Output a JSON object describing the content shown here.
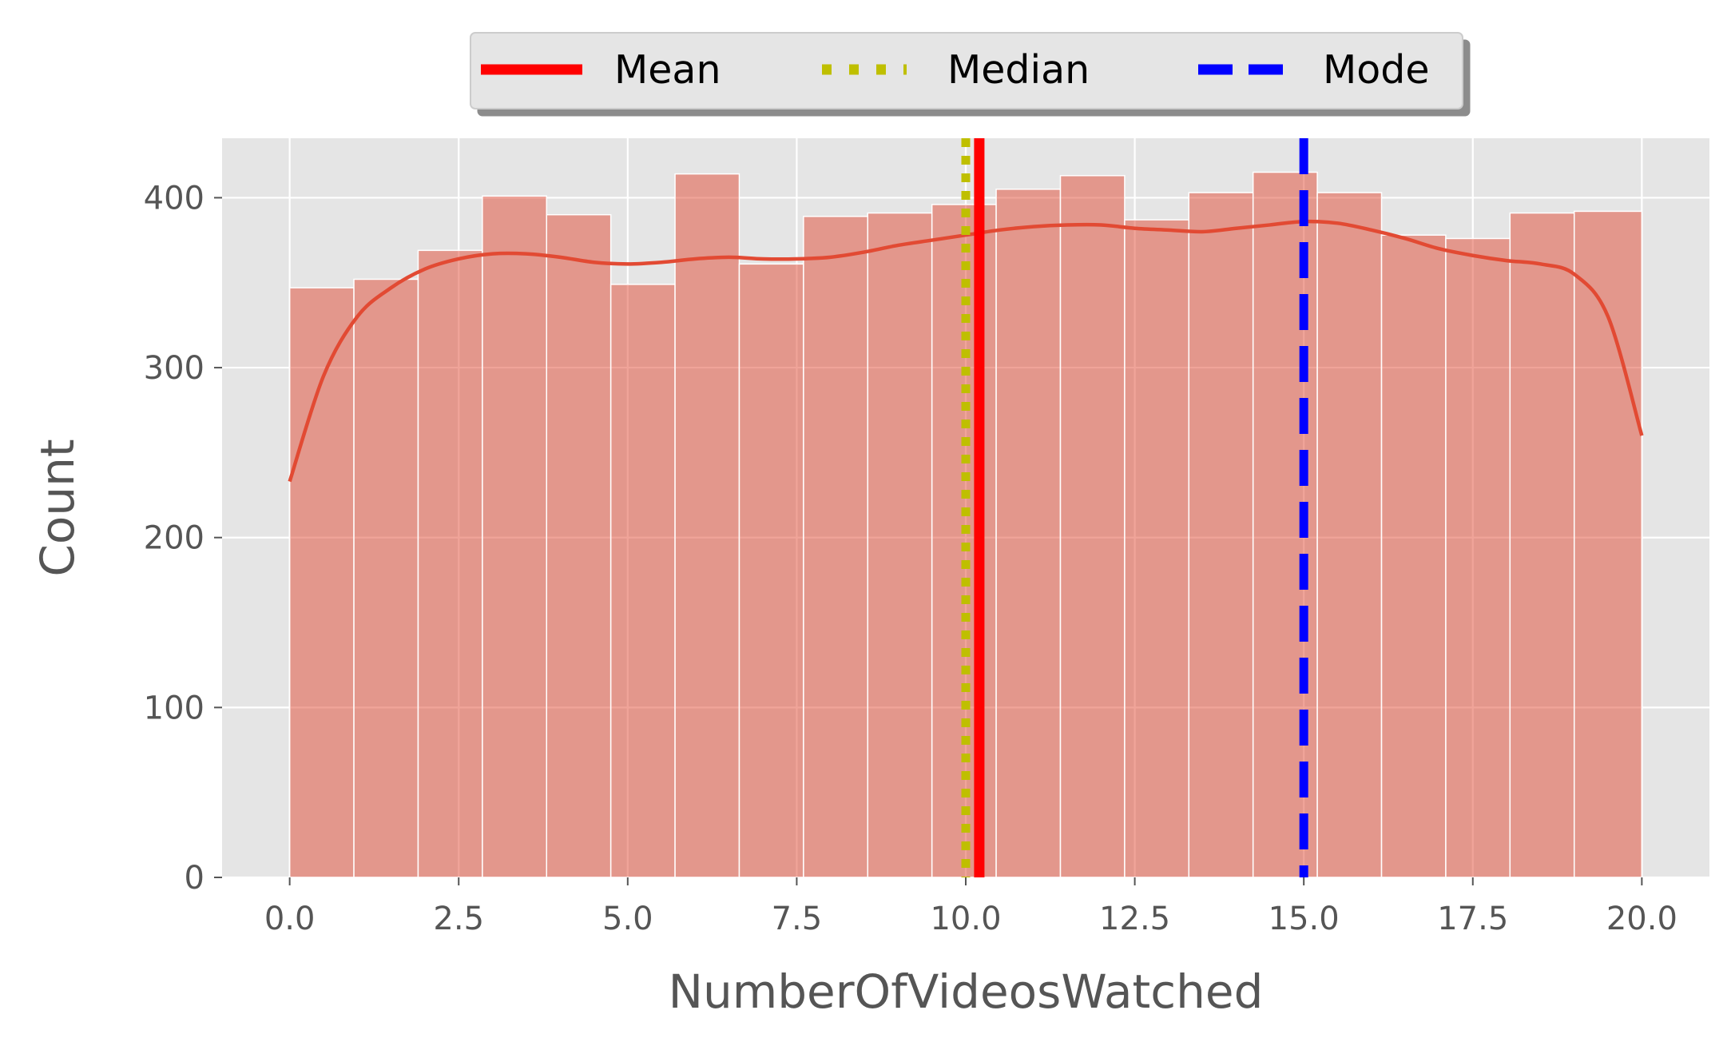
{
  "chart_data": {
    "type": "bar",
    "title": "",
    "xlabel": "NumberOfVideosWatched",
    "ylabel": "Count",
    "xlim": [
      -1.0,
      21.0
    ],
    "ylim": [
      0,
      435
    ],
    "xticks": [
      0.0,
      2.5,
      5.0,
      7.5,
      10.0,
      12.5,
      15.0,
      17.5,
      20.0
    ],
    "xtick_labels": [
      "0.0",
      "2.5",
      "5.0",
      "7.5",
      "10.0",
      "12.5",
      "15.0",
      "17.5",
      "20.0"
    ],
    "yticks": [
      0,
      100,
      200,
      300,
      400
    ],
    "ytick_labels": [
      "0",
      "100",
      "200",
      "300",
      "400"
    ],
    "grid": true,
    "bar_color": "#e24a33",
    "bins": {
      "edges": [
        0.0,
        0.95,
        1.9,
        2.85,
        3.8,
        4.75,
        5.7,
        6.65,
        7.6,
        8.55,
        9.5,
        10.45,
        11.4,
        12.35,
        13.3,
        14.25,
        15.2,
        16.15,
        17.1,
        18.05,
        19.0,
        20.0
      ],
      "counts": [
        347,
        352,
        369,
        401,
        390,
        349,
        414,
        361,
        389,
        391,
        396,
        405,
        413,
        387,
        403,
        415,
        403,
        378,
        376,
        391,
        392
      ]
    },
    "kde": {
      "color": "#e24a33",
      "x": [
        0.0,
        0.5,
        1.0,
        1.5,
        2.0,
        2.5,
        3.0,
        3.5,
        4.0,
        4.5,
        5.0,
        5.5,
        6.0,
        6.5,
        7.0,
        7.5,
        8.0,
        8.5,
        9.0,
        9.5,
        10.0,
        10.5,
        11.0,
        11.5,
        12.0,
        12.5,
        13.0,
        13.5,
        14.0,
        14.5,
        15.0,
        15.5,
        16.0,
        16.5,
        17.0,
        17.5,
        18.0,
        18.5,
        19.0,
        19.5,
        20.0
      ],
      "y": [
        233,
        295,
        330,
        347,
        358,
        364,
        367,
        367,
        365,
        362,
        361,
        362,
        364,
        365,
        364,
        364,
        365,
        368,
        372,
        375,
        378,
        381,
        383,
        384,
        384,
        382,
        381,
        380,
        382,
        384,
        386,
        385,
        381,
        376,
        370,
        366,
        363,
        361,
        355,
        330,
        260
      ]
    },
    "vlines": [
      {
        "label": "Mean",
        "x": 10.2,
        "color": "#ff0000",
        "style": "solid"
      },
      {
        "label": "Median",
        "x": 10.0,
        "color": "#bfbf00",
        "style": "dotted"
      },
      {
        "label": "Mode",
        "x": 15.0,
        "color": "#0000ff",
        "style": "dashed"
      }
    ],
    "legend": {
      "placement": "top-center-outside",
      "entries": [
        "Mean",
        "Median",
        "Mode"
      ]
    }
  }
}
